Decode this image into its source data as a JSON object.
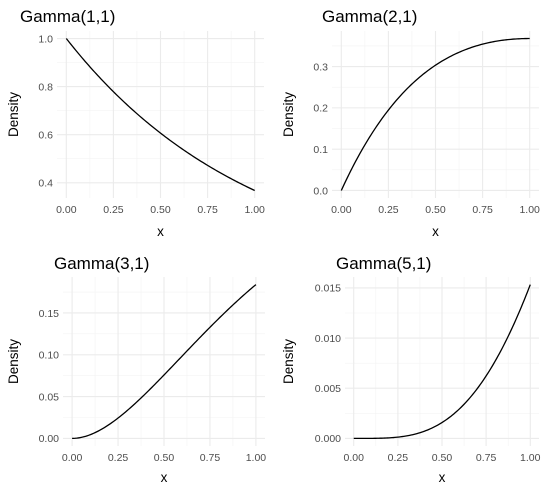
{
  "chart_data": [
    {
      "type": "line",
      "title": "Gamma(1,1)",
      "xlabel": "x",
      "ylabel": "Density",
      "shape": 1,
      "rate": 1,
      "xlim": [
        0,
        1
      ],
      "ylim": [
        0.3679,
        1.0
      ],
      "xticks": [
        0,
        0.25,
        0.5,
        0.75,
        1
      ],
      "xtick_labels": [
        "0.00",
        "0.25",
        "0.50",
        "0.75",
        "1.00"
      ],
      "yticks": [
        0.4,
        0.6,
        0.8,
        1.0
      ],
      "ytick_labels": [
        "0.4",
        "0.6",
        "0.8",
        "1.0"
      ],
      "x": [
        0,
        0.1,
        0.2,
        0.3,
        0.4,
        0.5,
        0.6,
        0.7,
        0.8,
        0.9,
        1.0
      ],
      "y": [
        1.0,
        0.905,
        0.819,
        0.741,
        0.67,
        0.607,
        0.549,
        0.497,
        0.449,
        0.407,
        0.368
      ],
      "grid": true
    },
    {
      "type": "line",
      "title": "Gamma(2,1)",
      "xlabel": "x",
      "ylabel": "Density",
      "shape": 2,
      "rate": 1,
      "xlim": [
        0,
        1
      ],
      "ylim": [
        0,
        0.3679
      ],
      "xticks": [
        0,
        0.25,
        0.5,
        0.75,
        1
      ],
      "xtick_labels": [
        "0.00",
        "0.25",
        "0.50",
        "0.75",
        "1.00"
      ],
      "yticks": [
        0,
        0.1,
        0.2,
        0.3
      ],
      "ytick_labels": [
        "0.0",
        "0.1",
        "0.2",
        "0.3"
      ],
      "x": [
        0,
        0.1,
        0.2,
        0.3,
        0.4,
        0.5,
        0.6,
        0.7,
        0.8,
        0.9,
        1.0
      ],
      "y": [
        0,
        0.09,
        0.164,
        0.222,
        0.268,
        0.303,
        0.329,
        0.348,
        0.359,
        0.366,
        0.368
      ],
      "grid": true
    },
    {
      "type": "line",
      "title": "Gamma(3,1)",
      "xlabel": "x",
      "ylabel": "Density",
      "shape": 3,
      "rate": 1,
      "xlim": [
        0,
        1
      ],
      "ylim": [
        0,
        0.1839
      ],
      "xticks": [
        0,
        0.25,
        0.5,
        0.75,
        1
      ],
      "xtick_labels": [
        "0.00",
        "0.25",
        "0.50",
        "0.75",
        "1.00"
      ],
      "yticks": [
        0,
        0.05,
        0.1,
        0.15
      ],
      "ytick_labels": [
        "0.00",
        "0.05",
        "0.10",
        "0.15"
      ],
      "x": [
        0,
        0.1,
        0.2,
        0.3,
        0.4,
        0.5,
        0.6,
        0.7,
        0.8,
        0.9,
        1.0
      ],
      "y": [
        0,
        0.0045,
        0.0164,
        0.0333,
        0.0536,
        0.0758,
        0.0988,
        0.1217,
        0.1438,
        0.1647,
        0.1839
      ],
      "grid": true
    },
    {
      "type": "line",
      "title": "Gamma(5,1)",
      "xlabel": "x",
      "ylabel": "Density",
      "shape": 5,
      "rate": 1,
      "xlim": [
        0,
        1
      ],
      "ylim": [
        0,
        0.01533
      ],
      "xticks": [
        0,
        0.25,
        0.5,
        0.75,
        1
      ],
      "xtick_labels": [
        "0.00",
        "0.25",
        "0.50",
        "0.75",
        "1.00"
      ],
      "yticks": [
        0,
        0.005,
        0.01,
        0.015
      ],
      "ytick_labels": [
        "0.000",
        "0.005",
        "0.010",
        "0.015"
      ],
      "x": [
        0,
        0.1,
        0.2,
        0.3,
        0.4,
        0.5,
        0.6,
        0.7,
        0.8,
        0.9,
        1.0
      ],
      "y": [
        0,
        3.8e-06,
        5.46e-05,
        0.00025,
        0.000715,
        0.00158,
        0.00296,
        0.00497,
        0.00767,
        0.01111,
        0.01533
      ],
      "grid": true
    }
  ]
}
